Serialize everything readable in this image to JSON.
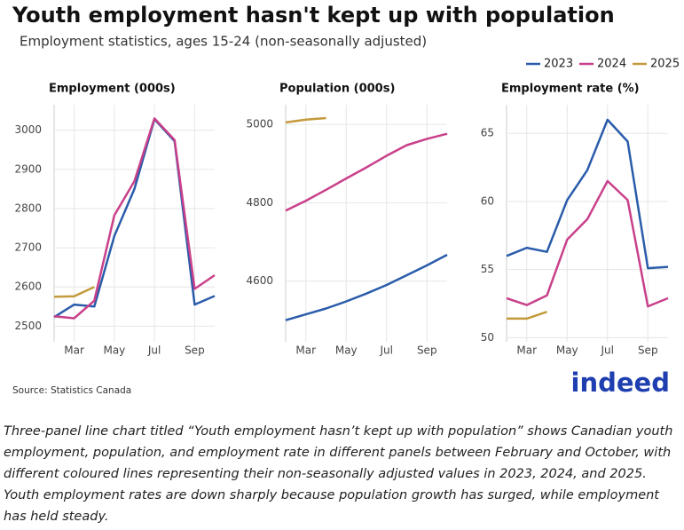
{
  "title": "Youth employment hasn't kept up with population",
  "subtitle": "Employment statistics, ages 15-24 (non-seasonally adjusted)",
  "source": "Source: Statistics Canada",
  "logo": "indeed",
  "caption": "Three-panel line chart titled “Youth employment hasn’t kept up with population” shows Canadian youth employment, population, and employment rate in different panels between February and October, with different coloured lines representing their non-seasonally adjusted values in 2023, 2024, and 2025. Youth employment rates are down sharply because population growth has surged, while employment has held steady.",
  "chart_data": [
    {
      "type": "line",
      "title": "Employment (000s)",
      "categories": [
        null,
        "Mar",
        null,
        "May",
        null,
        "Jul",
        null,
        "Sep",
        null
      ],
      "ylim": [
        2460,
        3065
      ],
      "yticks": [
        2500,
        2600,
        2700,
        2800,
        2900,
        3000
      ],
      "grid": true,
      "series": [
        {
          "name": "2023",
          "color": "#2a5caa",
          "values": [
            2523,
            2555,
            2550,
            2730,
            2850,
            3028,
            2972,
            2555,
            2577
          ]
        },
        {
          "name": "2024",
          "color": "#c9408a",
          "values": [
            2525,
            2520,
            2565,
            2783,
            2870,
            3030,
            2975,
            2595,
            2630
          ]
        },
        {
          "name": "2025",
          "color": "#c49a3c",
          "values": [
            2575,
            2576,
            2600,
            null,
            null,
            null,
            null,
            null,
            null
          ]
        }
      ]
    },
    {
      "type": "line",
      "title": "Population (000s)",
      "categories": [
        null,
        "Mar",
        null,
        "May",
        null,
        "Jul",
        null,
        "Sep",
        null
      ],
      "ylim": [
        4445,
        5050
      ],
      "yticks": [
        4600,
        4800,
        5000
      ],
      "grid": true,
      "series": [
        {
          "name": "2023",
          "color": "#2a5caa",
          "values": [
            4500,
            4515,
            4530,
            4548,
            4568,
            4590,
            4615,
            4640,
            4667
          ]
        },
        {
          "name": "2024",
          "color": "#c9408a",
          "values": [
            4780,
            4805,
            4833,
            4862,
            4890,
            4920,
            4947,
            4963,
            4976
          ]
        },
        {
          "name": "2025",
          "color": "#c49a3c",
          "values": [
            5005,
            5012,
            5016,
            null,
            null,
            null,
            null,
            null,
            null
          ]
        }
      ]
    },
    {
      "type": "line",
      "title": "Employment rate (%)",
      "categories": [
        null,
        "Mar",
        null,
        "May",
        null,
        "Jul",
        null,
        "Sep",
        null
      ],
      "ylim": [
        49.7,
        67.1
      ],
      "yticks": [
        50,
        55,
        60,
        65
      ],
      "grid": true,
      "series": [
        {
          "name": "2023",
          "color": "#2a5caa",
          "values": [
            56.0,
            56.6,
            56.3,
            60.1,
            62.3,
            66.0,
            64.4,
            55.1,
            55.2
          ]
        },
        {
          "name": "2024",
          "color": "#c9408a",
          "values": [
            52.9,
            52.4,
            53.1,
            57.2,
            58.7,
            61.5,
            60.1,
            52.3,
            52.9
          ]
        },
        {
          "name": "2025",
          "color": "#c49a3c",
          "values": [
            51.4,
            51.4,
            51.9,
            null,
            null,
            null,
            null,
            null,
            null
          ]
        }
      ]
    }
  ]
}
